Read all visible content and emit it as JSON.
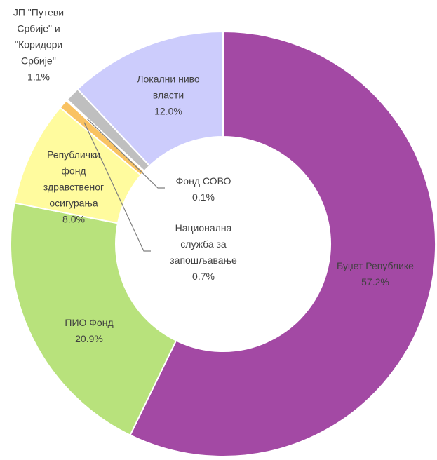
{
  "chart_data": {
    "type": "pie",
    "donut": true,
    "categories": [
      "Буџет Републике",
      "ПИО Фонд",
      "Републички фонд здравственог осигурања",
      "Национална служба за запошљавање",
      "Фонд СОВО",
      "ЈП \"Путеви Србије\" и ''Коридори Србије''",
      "Локални ниво власти"
    ],
    "values": [
      57.2,
      20.9,
      8.0,
      0.7,
      0.1,
      1.1,
      12.0
    ],
    "value_labels": [
      "57.2%",
      "20.9%",
      "8.0%",
      "0.7%",
      "0.1%",
      "1.1%",
      "12.0%"
    ],
    "colors": [
      "#a349a4",
      "#b8e27c",
      "#fffb9e",
      "#f9c262",
      "#7f7f7f",
      "#bfbfbf",
      "#ccccfc"
    ]
  }
}
